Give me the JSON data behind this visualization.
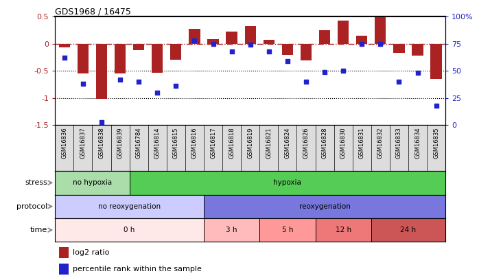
{
  "title": "GDS1968 / 16475",
  "samples": [
    "GSM16836",
    "GSM16837",
    "GSM16838",
    "GSM16839",
    "GSM16784",
    "GSM16814",
    "GSM16815",
    "GSM16816",
    "GSM16817",
    "GSM16818",
    "GSM16819",
    "GSM16821",
    "GSM16824",
    "GSM16826",
    "GSM16828",
    "GSM16830",
    "GSM16831",
    "GSM16832",
    "GSM16833",
    "GSM16834",
    "GSM16835"
  ],
  "log2_ratio": [
    -0.07,
    -0.55,
    -1.01,
    -0.55,
    -0.12,
    -0.53,
    -0.3,
    0.28,
    0.08,
    0.23,
    0.33,
    0.07,
    -0.2,
    -0.31,
    0.25,
    0.43,
    0.15,
    0.5,
    -0.17,
    -0.22,
    -0.65
  ],
  "percentile": [
    62,
    38,
    3,
    42,
    40,
    30,
    36,
    78,
    75,
    68,
    74,
    68,
    59,
    40,
    49,
    50,
    75,
    75,
    40,
    48,
    18
  ],
  "ylim_left": [
    -1.5,
    0.5
  ],
  "ylim_right": [
    0,
    100
  ],
  "yticks_left": [
    -1.5,
    -1.0,
    -0.5,
    0.0,
    0.5
  ],
  "ytick_labels_left": [
    "-1.5",
    "-1",
    "-0.5",
    "0",
    "0.5"
  ],
  "yticks_right": [
    0,
    25,
    50,
    75,
    100
  ],
  "ytick_labels_right": [
    "0",
    "25",
    "50",
    "75",
    "100%"
  ],
  "hline_y": 0.0,
  "dotted_lines": [
    -0.5,
    -1.0
  ],
  "bar_color": "#aa2222",
  "dot_color": "#2222cc",
  "stress_labels": [
    {
      "text": "no hypoxia",
      "start": 0,
      "end": 4,
      "color": "#aaddaa"
    },
    {
      "text": "hypoxia",
      "start": 4,
      "end": 21,
      "color": "#55cc55"
    }
  ],
  "protocol_labels": [
    {
      "text": "no reoxygenation",
      "start": 0,
      "end": 8,
      "color": "#ccccff"
    },
    {
      "text": "reoxygenation",
      "start": 8,
      "end": 21,
      "color": "#7777dd"
    }
  ],
  "time_labels": [
    {
      "text": "0 h",
      "start": 0,
      "end": 8,
      "color": "#ffe8e8"
    },
    {
      "text": "3 h",
      "start": 8,
      "end": 11,
      "color": "#ffbbbb"
    },
    {
      "text": "5 h",
      "start": 11,
      "end": 14,
      "color": "#ff9999"
    },
    {
      "text": "12 h",
      "start": 14,
      "end": 17,
      "color": "#ee7777"
    },
    {
      "text": "24 h",
      "start": 17,
      "end": 21,
      "color": "#cc5555"
    }
  ],
  "legend_items": [
    {
      "label": "log2 ratio",
      "color": "#aa2222"
    },
    {
      "label": "percentile rank within the sample",
      "color": "#2222cc"
    }
  ],
  "row_labels": [
    "stress",
    "protocol",
    "time"
  ],
  "xticklabel_bg": "#cccccc"
}
